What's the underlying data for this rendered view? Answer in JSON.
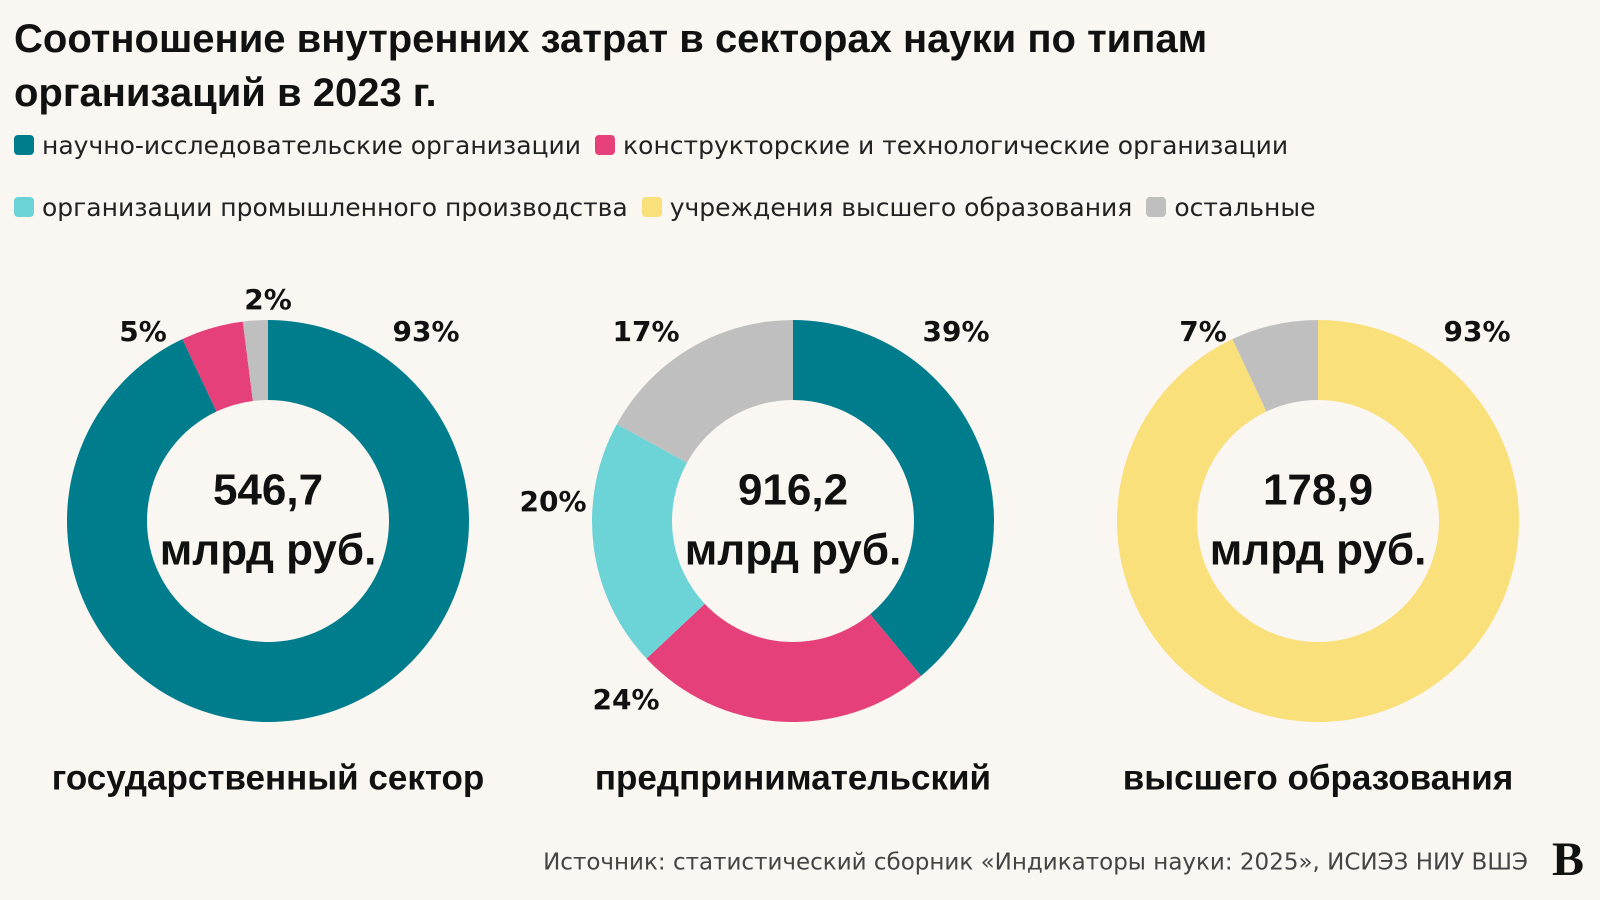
{
  "title": "Соотношение внутренних затрат в секторах науки по типам организаций в 2023 г.",
  "legend": [
    {
      "name": "научно-исследовательские организации",
      "color": "#007d8c"
    },
    {
      "name": "конструкторские и технологические организации",
      "color": "#e5407a"
    },
    {
      "name": "организации промышленного производства",
      "color": "#6cd3d6"
    },
    {
      "name": "учреждения высшего образования",
      "color": "#f9e07a"
    },
    {
      "name": "остальные",
      "color": "#bfbfbf"
    }
  ],
  "chart_data": [
    {
      "type": "pie",
      "values": [
        93,
        5,
        2
      ],
      "value_labels": [
        "93%",
        "5%",
        "2%"
      ],
      "colors": [
        "#007d8c",
        "#e5407a",
        "#bfbfbf"
      ],
      "center_lines": [
        "546,7",
        "млрд руб."
      ],
      "label": "государственный сектор"
    },
    {
      "type": "pie",
      "values": [
        39,
        24,
        20,
        17
      ],
      "value_labels": [
        "39%",
        "24%",
        "20%",
        "17%"
      ],
      "colors": [
        "#007d8c",
        "#e5407a",
        "#6cd3d6",
        "#bfbfbf"
      ],
      "center_lines": [
        "916,2",
        "млрд руб."
      ],
      "label": "предпринимательский"
    },
    {
      "type": "pie",
      "values": [
        93,
        7
      ],
      "value_labels": [
        "93%",
        "7%"
      ],
      "colors": [
        "#f9e07a",
        "#bfbfbf"
      ],
      "center_lines": [
        "178,9",
        "млрд руб."
      ],
      "label": "высшего образования"
    }
  ],
  "source": "Источник: статистический сборник «Индикаторы науки: 2025», ИСИЭЗ НИУ ВШЭ",
  "logo": "В"
}
